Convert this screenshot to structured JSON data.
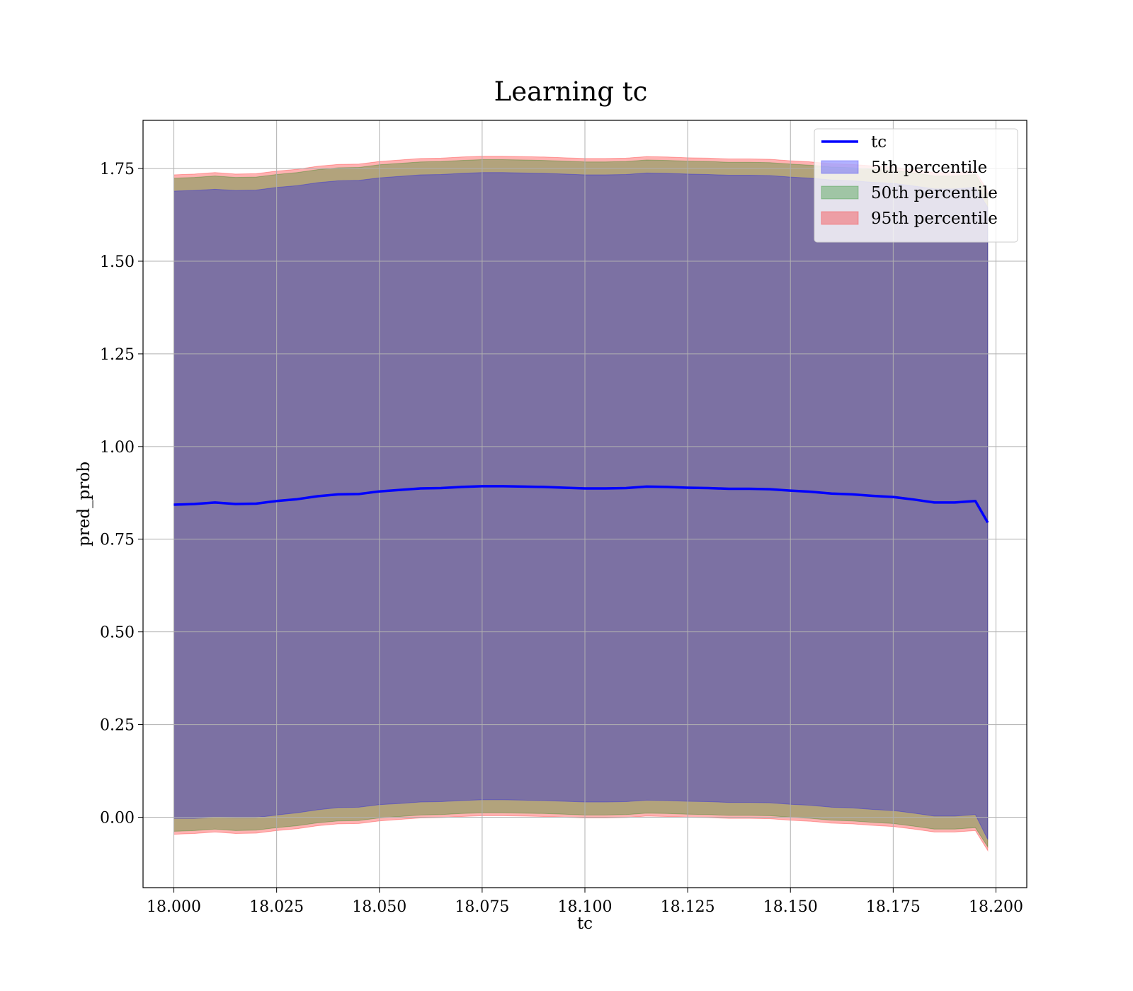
{
  "chart_data": {
    "type": "line",
    "title": "Learning tc",
    "xlabel": "tc",
    "ylabel": "pred_prob",
    "xlim": [
      17.9925,
      18.2075
    ],
    "ylim": [
      -0.19,
      1.88
    ],
    "x_ticks": [
      "18.000",
      "18.025",
      "18.050",
      "18.075",
      "18.100",
      "18.125",
      "18.150",
      "18.175",
      "18.200"
    ],
    "y_ticks": [
      "0.00",
      "0.25",
      "0.50",
      "0.75",
      "1.00",
      "1.25",
      "1.50",
      "1.75"
    ],
    "grid": true,
    "legend_position": "top-right",
    "x": [
      18.0,
      18.005,
      18.01,
      18.015,
      18.02,
      18.025,
      18.03,
      18.035,
      18.04,
      18.045,
      18.05,
      18.055,
      18.06,
      18.065,
      18.07,
      18.075,
      18.08,
      18.085,
      18.09,
      18.095,
      18.1,
      18.105,
      18.11,
      18.115,
      18.12,
      18.125,
      18.13,
      18.135,
      18.14,
      18.145,
      18.15,
      18.155,
      18.16,
      18.165,
      18.17,
      18.175,
      18.18,
      18.185,
      18.19,
      18.195,
      18.198
    ],
    "series": [
      {
        "name": "tc",
        "kind": "line",
        "color": "#0000ff",
        "values": [
          0.843,
          0.845,
          0.849,
          0.845,
          0.846,
          0.853,
          0.858,
          0.866,
          0.871,
          0.872,
          0.879,
          0.883,
          0.887,
          0.888,
          0.891,
          0.893,
          0.893,
          0.892,
          0.891,
          0.889,
          0.887,
          0.887,
          0.888,
          0.892,
          0.891,
          0.889,
          0.888,
          0.886,
          0.886,
          0.885,
          0.881,
          0.878,
          0.873,
          0.871,
          0.867,
          0.864,
          0.857,
          0.849,
          0.849,
          0.853,
          0.795
        ]
      },
      {
        "name": "5th percentile",
        "kind": "band",
        "color": "#0000ff",
        "lower": [
          -0.003,
          -0.003,
          0.0,
          -0.001,
          -0.001,
          0.006,
          0.012,
          0.02,
          0.026,
          0.027,
          0.034,
          0.037,
          0.041,
          0.042,
          0.045,
          0.047,
          0.047,
          0.046,
          0.045,
          0.043,
          0.041,
          0.041,
          0.042,
          0.046,
          0.045,
          0.043,
          0.042,
          0.04,
          0.04,
          0.039,
          0.035,
          0.032,
          0.027,
          0.025,
          0.021,
          0.018,
          0.011,
          0.003,
          0.003,
          0.007,
          -0.06
        ],
        "upper": [
          1.689,
          1.691,
          1.694,
          1.691,
          1.692,
          1.699,
          1.704,
          1.712,
          1.717,
          1.718,
          1.725,
          1.729,
          1.733,
          1.734,
          1.737,
          1.739,
          1.739,
          1.738,
          1.737,
          1.735,
          1.733,
          1.733,
          1.734,
          1.738,
          1.737,
          1.735,
          1.734,
          1.732,
          1.732,
          1.731,
          1.727,
          1.724,
          1.719,
          1.717,
          1.713,
          1.71,
          1.703,
          1.695,
          1.695,
          1.699,
          1.645
        ]
      },
      {
        "name": "50th percentile",
        "kind": "band",
        "color": "#008000",
        "lower": [
          -0.038,
          -0.036,
          -0.032,
          -0.036,
          -0.035,
          -0.028,
          -0.023,
          -0.015,
          -0.01,
          -0.009,
          -0.002,
          0.002,
          0.006,
          0.007,
          0.01,
          0.012,
          0.012,
          0.011,
          0.01,
          0.008,
          0.006,
          0.006,
          0.007,
          0.011,
          0.01,
          0.008,
          0.007,
          0.005,
          0.005,
          0.004,
          0.0,
          -0.003,
          -0.008,
          -0.01,
          -0.014,
          -0.017,
          -0.024,
          -0.032,
          -0.032,
          -0.028,
          -0.08
        ],
        "upper": [
          1.724,
          1.726,
          1.73,
          1.726,
          1.727,
          1.734,
          1.739,
          1.747,
          1.752,
          1.753,
          1.76,
          1.764,
          1.768,
          1.769,
          1.772,
          1.774,
          1.774,
          1.773,
          1.772,
          1.77,
          1.768,
          1.768,
          1.769,
          1.773,
          1.772,
          1.77,
          1.769,
          1.767,
          1.767,
          1.766,
          1.762,
          1.759,
          1.754,
          1.752,
          1.748,
          1.745,
          1.738,
          1.73,
          1.73,
          1.734,
          1.68
        ]
      },
      {
        "name": "95th percentile",
        "kind": "band",
        "color": "#ff0000",
        "lower": [
          -0.046,
          -0.044,
          -0.04,
          -0.044,
          -0.043,
          -0.036,
          -0.031,
          -0.023,
          -0.018,
          -0.017,
          -0.01,
          -0.006,
          -0.002,
          -0.001,
          0.002,
          0.004,
          0.004,
          0.003,
          0.002,
          0.0,
          -0.002,
          -0.002,
          -0.001,
          0.003,
          0.002,
          0.0,
          -0.001,
          -0.003,
          -0.003,
          -0.004,
          -0.008,
          -0.011,
          -0.016,
          -0.018,
          -0.022,
          -0.025,
          -0.032,
          -0.04,
          -0.04,
          -0.036,
          -0.09
        ],
        "upper": [
          1.733,
          1.735,
          1.739,
          1.735,
          1.736,
          1.743,
          1.748,
          1.756,
          1.761,
          1.762,
          1.769,
          1.773,
          1.777,
          1.778,
          1.781,
          1.783,
          1.783,
          1.782,
          1.781,
          1.779,
          1.777,
          1.777,
          1.778,
          1.782,
          1.781,
          1.779,
          1.778,
          1.776,
          1.776,
          1.775,
          1.771,
          1.768,
          1.763,
          1.761,
          1.757,
          1.754,
          1.747,
          1.739,
          1.739,
          1.743,
          1.69
        ]
      }
    ]
  }
}
